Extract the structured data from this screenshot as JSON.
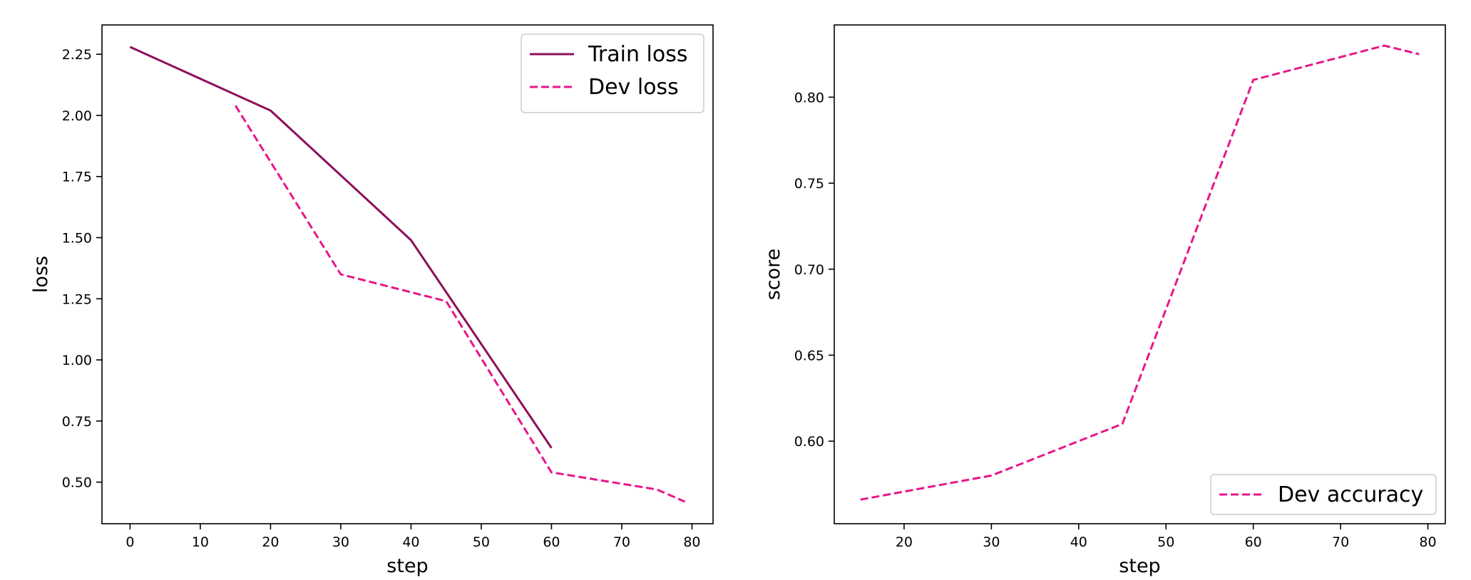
{
  "colors": {
    "train": "#8e0f5a",
    "dev": "#e7168b",
    "background": "#ffffff",
    "axes": "#000000"
  },
  "chart_data": [
    {
      "type": "line",
      "title": "",
      "xlabel": "step",
      "ylabel": "loss",
      "xlim": [
        -4,
        83
      ],
      "ylim": [
        0.33,
        2.37
      ],
      "xticks": [
        0,
        10,
        20,
        30,
        40,
        50,
        60,
        70,
        80
      ],
      "yticks": [
        0.5,
        0.75,
        1.0,
        1.25,
        1.5,
        1.75,
        2.0,
        2.25
      ],
      "xtick_labels": [
        "0",
        "10",
        "20",
        "30",
        "40",
        "50",
        "60",
        "70",
        "80"
      ],
      "ytick_labels": [
        "0.50",
        "0.75",
        "1.00",
        "1.25",
        "1.50",
        "1.75",
        "2.00",
        "2.25"
      ],
      "grid": false,
      "legend_position": "top-right",
      "series": [
        {
          "name": "Train loss",
          "style": "solid",
          "color": "#8e0f5a",
          "x": [
            0,
            20,
            40,
            60
          ],
          "y": [
            2.28,
            2.02,
            1.49,
            0.64
          ]
        },
        {
          "name": "Dev loss",
          "style": "dashed",
          "color": "#e7168b",
          "x": [
            15,
            30,
            45,
            60,
            75,
            79
          ],
          "y": [
            2.04,
            1.35,
            1.24,
            0.54,
            0.47,
            0.42
          ]
        }
      ]
    },
    {
      "type": "line",
      "title": "",
      "xlabel": "step",
      "ylabel": "score",
      "xlim": [
        12,
        82
      ],
      "ylim": [
        0.552,
        0.842
      ],
      "xticks": [
        20,
        30,
        40,
        50,
        60,
        70,
        80
      ],
      "yticks": [
        0.6,
        0.65,
        0.7,
        0.75,
        0.8
      ],
      "xtick_labels": [
        "20",
        "30",
        "40",
        "50",
        "60",
        "70",
        "80"
      ],
      "ytick_labels": [
        "0.60",
        "0.65",
        "0.70",
        "0.75",
        "0.80"
      ],
      "grid": false,
      "legend_position": "bottom-right",
      "series": [
        {
          "name": "Dev accuracy",
          "style": "dashed",
          "color": "#e7168b",
          "x": [
            15,
            30,
            45,
            60,
            75,
            79
          ],
          "y": [
            0.566,
            0.58,
            0.61,
            0.81,
            0.83,
            0.825
          ]
        }
      ]
    }
  ]
}
